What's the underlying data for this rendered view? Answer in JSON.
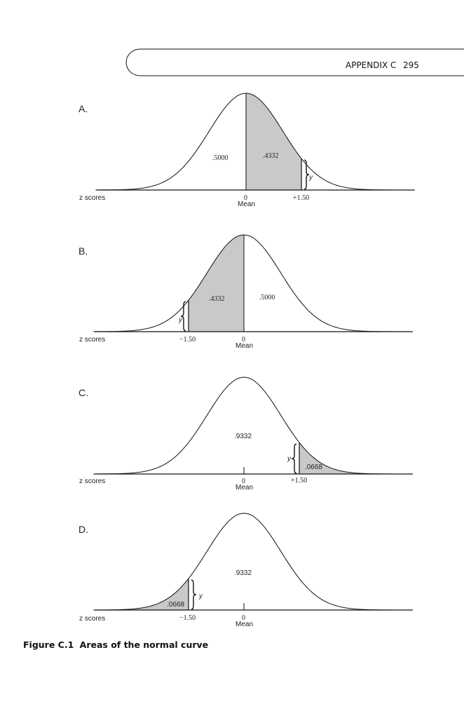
{
  "header": {
    "section": "APPENDIX C",
    "page_number": "295"
  },
  "panels": [
    {
      "label": "A.",
      "axis_label": "z scores",
      "shade": "between",
      "z": 1.5,
      "areas": [
        ".5000",
        ".4332"
      ],
      "z_tick": "+1.50",
      "mean_tick": "0",
      "mean_label": "Mean",
      "ordinate": "y"
    },
    {
      "label": "B.",
      "axis_label": "z scores",
      "shade": "between",
      "z": -1.5,
      "areas": [
        ".4332",
        ".5000"
      ],
      "z_tick": "−1.50",
      "mean_tick": "0",
      "mean_label": "Mean",
      "ordinate": "y"
    },
    {
      "label": "C.",
      "axis_label": "z scores",
      "shade": "tail",
      "z": 1.5,
      "areas": [
        ".9332",
        ".0668"
      ],
      "z_tick": "+1.50",
      "mean_tick": "0",
      "mean_label": "Mean",
      "ordinate": "y"
    },
    {
      "label": "D.",
      "axis_label": "z scores",
      "shade": "tail",
      "z": -1.5,
      "areas": [
        ".9332",
        ".0668"
      ],
      "z_tick": "−1.50",
      "mean_tick": "0",
      "mean_label": "Mean",
      "ordinate": "y"
    }
  ],
  "caption": {
    "number": "Figure C.1",
    "text": "Areas of the normal curve"
  },
  "colors": {
    "shade": "#c8c9cb",
    "ink": "#111111"
  }
}
